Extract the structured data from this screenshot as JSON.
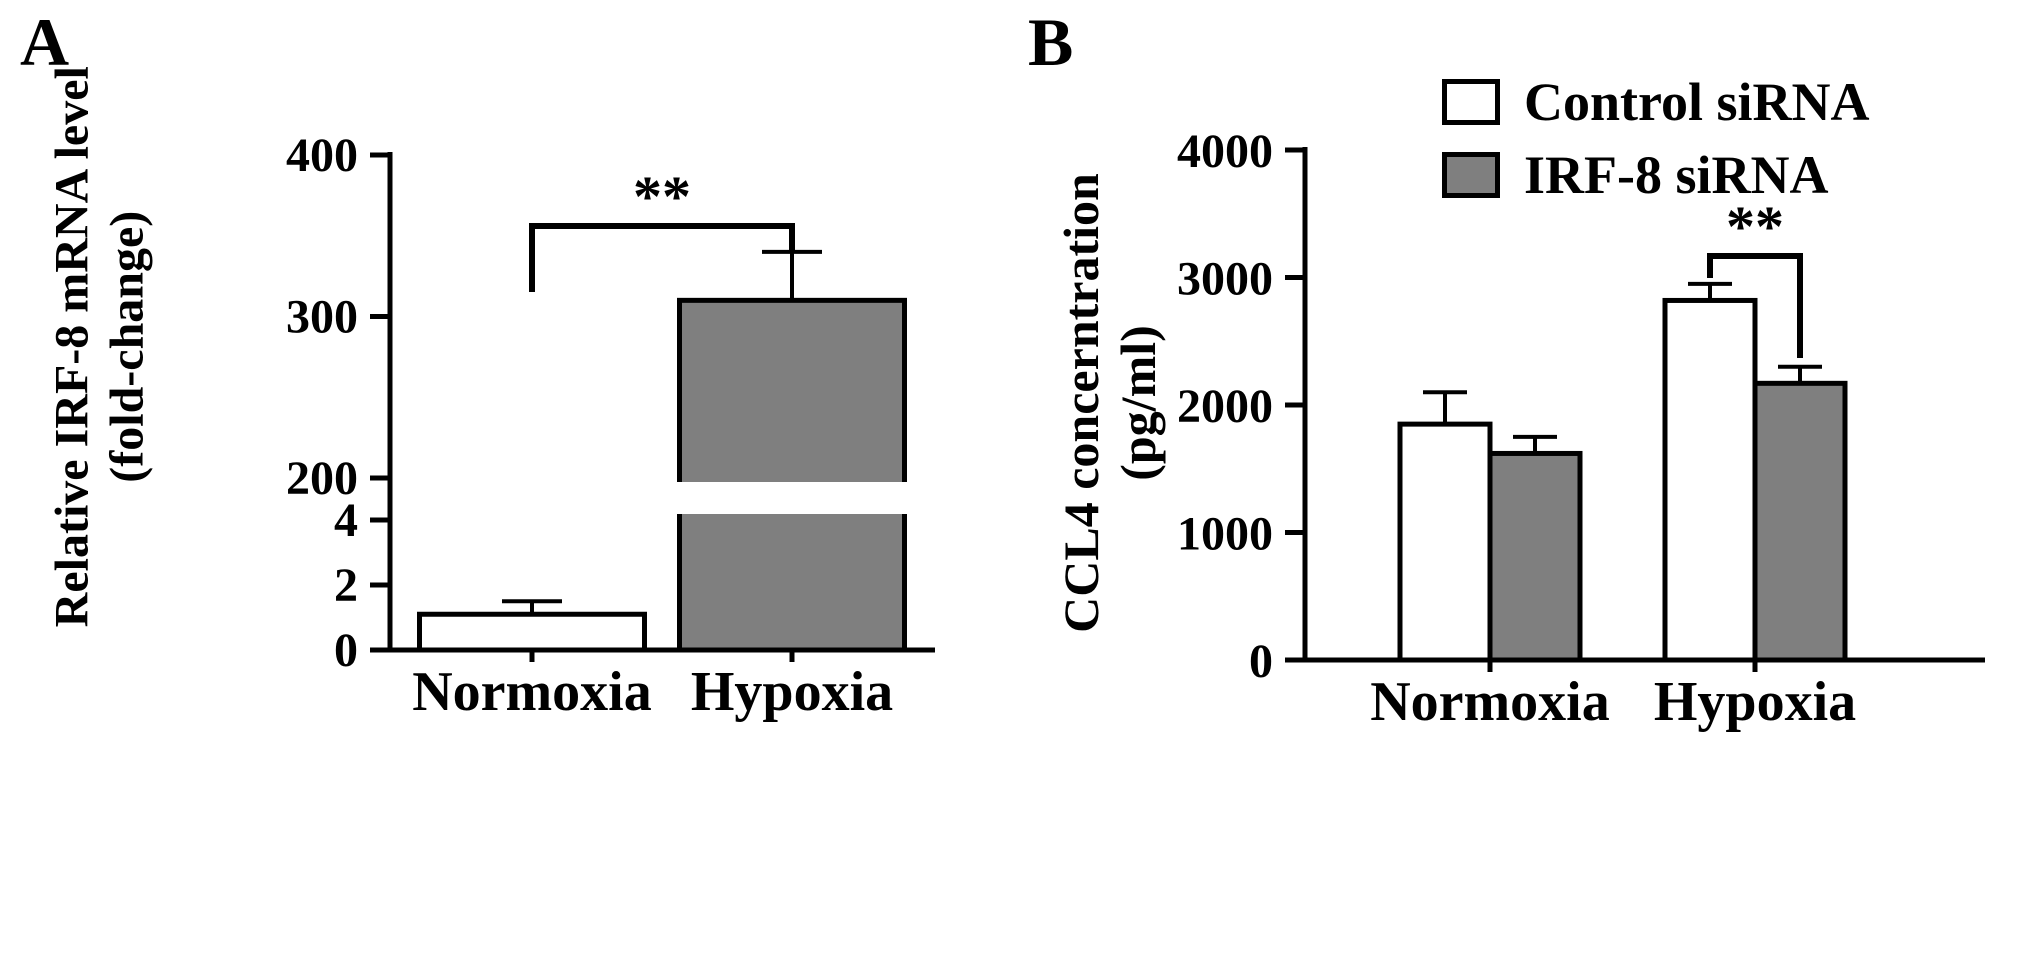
{
  "figure": {
    "background": "#ffffff",
    "bar_white": "#ffffff",
    "bar_gray": "#7f7f7f",
    "line_color": "#000000"
  },
  "panels": {
    "a": {
      "label": "A",
      "ylabel_line1": "Relative IRF-8 mRNA level",
      "ylabel_line2": "(fold-change)"
    },
    "b": {
      "label": "B",
      "ylabel_line1": "CCL4 concerntration",
      "ylabel_line2": "(pg/ml)"
    }
  },
  "legend": {
    "items": [
      {
        "label": "Control siRNA",
        "fill": "#ffffff"
      },
      {
        "label": "IRF-8 siRNA",
        "fill": "#7f7f7f"
      }
    ]
  },
  "chart_data": [
    {
      "panel": "A",
      "type": "bar",
      "title": "",
      "ylabel": "Relative IRF-8 mRNA level (fold-change)",
      "categories": [
        "Normoxia",
        "Hypoxia"
      ],
      "series": [
        {
          "name": "Relative IRF-8 mRNA level",
          "values": [
            1.1,
            310
          ],
          "errors": [
            0.4,
            30
          ],
          "fills": [
            "#ffffff",
            "#7f7f7f"
          ]
        }
      ],
      "axis": {
        "broken": true,
        "lower": {
          "range": [
            0,
            4
          ],
          "ticks": [
            0,
            2,
            4
          ]
        },
        "upper": {
          "range": [
            200,
            400
          ],
          "ticks": [
            200,
            300,
            400
          ]
        }
      },
      "grid": false,
      "significance": [
        {
          "label": "**",
          "from": "Normoxia",
          "to": "Hypoxia"
        }
      ]
    },
    {
      "panel": "B",
      "type": "bar",
      "title": "",
      "ylabel": "CCL4 concerntration (pg/ml)",
      "categories": [
        "Normoxia",
        "Hypoxia"
      ],
      "series": [
        {
          "name": "Control siRNA",
          "fill": "#ffffff",
          "values": [
            1850,
            2820
          ],
          "errors": [
            250,
            130
          ]
        },
        {
          "name": "IRF-8 siRNA",
          "fill": "#7f7f7f",
          "values": [
            1620,
            2170
          ],
          "errors": [
            130,
            130
          ]
        }
      ],
      "axis": {
        "range": [
          0,
          4000
        ],
        "ticks": [
          0,
          1000,
          2000,
          3000,
          4000
        ]
      },
      "grid": false,
      "legend_position": "top-right",
      "significance": [
        {
          "label": "**",
          "at": "Hypoxia",
          "between": [
            "Control siRNA",
            "IRF-8 siRNA"
          ]
        }
      ]
    }
  ]
}
